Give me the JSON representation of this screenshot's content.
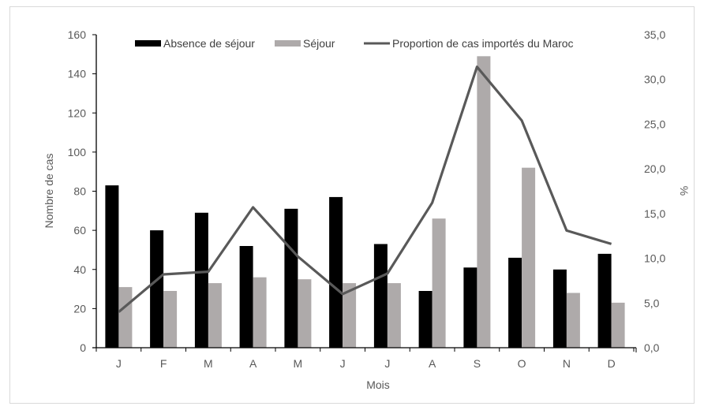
{
  "chart_data": {
    "type": "bar",
    "combo": "bar+line (dual axis)",
    "title": "",
    "categories": [
      "J",
      "F",
      "M",
      "A",
      "M",
      "J",
      "J",
      "A",
      "S",
      "O",
      "N",
      "D"
    ],
    "xlabel": "Mois",
    "ylabel": "Nombre de cas",
    "y2label": "%",
    "ylim": [
      0,
      160
    ],
    "y2lim": [
      0,
      35
    ],
    "yticks": [
      "0",
      "20",
      "40",
      "60",
      "80",
      "100",
      "120",
      "140",
      "160"
    ],
    "y2ticks": [
      "0,0",
      "5,0",
      "10,0",
      "15,0",
      "20,0",
      "25,0",
      "30,0",
      "35,0"
    ],
    "grid": false,
    "legend_position": "top",
    "series": [
      {
        "name": "Absence de séjour",
        "type": "bar",
        "axis": "left",
        "color": "#000000",
        "values": [
          83,
          60,
          69,
          52,
          71,
          77,
          53,
          29,
          41,
          46,
          40,
          48
        ]
      },
      {
        "name": "Séjour",
        "type": "bar",
        "axis": "left",
        "color": "#aeaaaa",
        "values": [
          31,
          29,
          33,
          36,
          35,
          33,
          33,
          66,
          149,
          92,
          28,
          23
        ]
      },
      {
        "name": "Proportion de cas importés du Maroc",
        "type": "line",
        "axis": "right",
        "color": "#595959",
        "values": [
          4.0,
          8.2,
          8.5,
          15.7,
          10.2,
          6.0,
          8.3,
          16.2,
          31.4,
          25.4,
          13.1,
          11.6
        ]
      }
    ]
  }
}
